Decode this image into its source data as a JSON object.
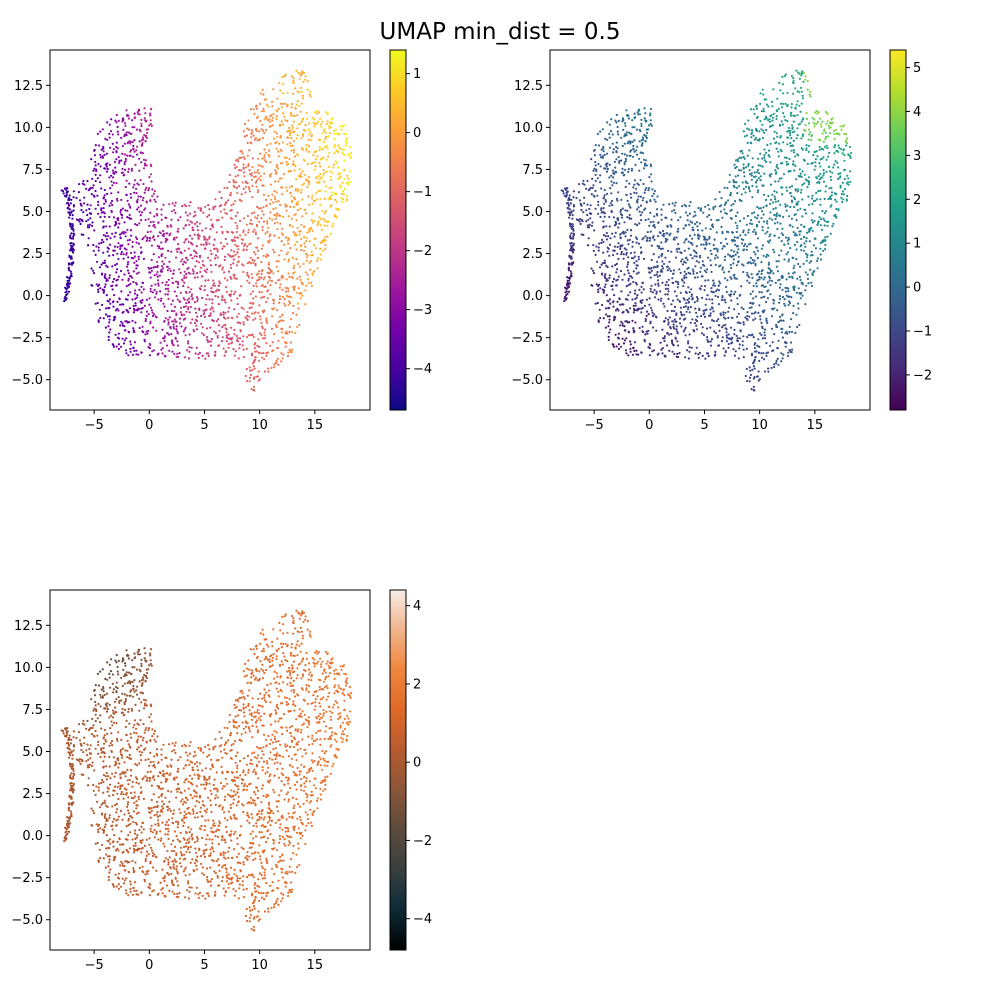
{
  "figure": {
    "suptitle": "UMAP min_dist = 0.5"
  },
  "chart_data": [
    {
      "type": "scatter",
      "panel": "top-left",
      "title": "",
      "xlabel": "",
      "ylabel": "",
      "xlim": [
        -9,
        20
      ],
      "ylim": [
        -6.8,
        14.6
      ],
      "xticks": [
        -5,
        0,
        5,
        10,
        15
      ],
      "yticks": [
        -5.0,
        -2.5,
        0.0,
        2.5,
        5.0,
        7.5,
        10.0,
        12.5
      ],
      "xtick_labels": [
        "−5",
        "0",
        "5",
        "10",
        "15"
      ],
      "ytick_labels": [
        "−5.0",
        "−2.5",
        "0.0",
        "2.5",
        "5.0",
        "7.5",
        "10.0",
        "12.5"
      ],
      "grid": false,
      "colormap": "plasma",
      "color_range": [
        -4.7,
        1.4
      ],
      "colorbar_ticks": [
        -4,
        -3,
        -2,
        -1,
        0,
        1
      ],
      "colorbar_tick_labels": [
        "−4",
        "−3",
        "−2",
        "−1",
        "0",
        "1"
      ],
      "color_trend": "increases toward upper right (yellow), lowest on left arm (purple)"
    },
    {
      "type": "scatter",
      "panel": "top-right",
      "title": "",
      "xlabel": "",
      "ylabel": "",
      "xlim": [
        -9,
        20
      ],
      "ylim": [
        -6.8,
        14.6
      ],
      "xticks": [
        -5,
        0,
        5,
        10,
        15
      ],
      "yticks": [
        -5.0,
        -2.5,
        0.0,
        2.5,
        5.0,
        7.5,
        10.0,
        12.5
      ],
      "xtick_labels": [
        "−5",
        "0",
        "5",
        "10",
        "15"
      ],
      "ytick_labels": [
        "−5.0",
        "−2.5",
        "0.0",
        "2.5",
        "5.0",
        "7.5",
        "10.0",
        "12.5"
      ],
      "grid": false,
      "colormap": "viridis",
      "color_range": [
        -2.8,
        5.4
      ],
      "colorbar_ticks": [
        -2,
        -1,
        0,
        1,
        2,
        3,
        4,
        5
      ],
      "colorbar_tick_labels": [
        "−2",
        "−1",
        "0",
        "1",
        "2",
        "3",
        "4",
        "5"
      ],
      "color_trend": "highest at top right lobe (green-yellow), lowest at bottom left (dark purple)"
    },
    {
      "type": "scatter",
      "panel": "bottom-left",
      "title": "",
      "xlabel": "",
      "ylabel": "",
      "xlim": [
        -9,
        20
      ],
      "ylim": [
        -6.8,
        14.6
      ],
      "xticks": [
        -5,
        0,
        5,
        10,
        15
      ],
      "yticks": [
        -5.0,
        -2.5,
        0.0,
        2.5,
        5.0,
        7.5,
        10.0,
        12.5
      ],
      "xtick_labels": [
        "−5",
        "0",
        "5",
        "10",
        "15"
      ],
      "ytick_labels": [
        "−5.0",
        "−2.5",
        "0.0",
        "2.5",
        "5.0",
        "7.5",
        "10.0",
        "12.5"
      ],
      "grid": false,
      "colormap": "oranges-dark",
      "color_range": [
        -4.8,
        4.4
      ],
      "colorbar_ticks": [
        -4,
        -2,
        0,
        2,
        4
      ],
      "colorbar_tick_labels": [
        "−4",
        "−2",
        "0",
        "2",
        "4"
      ],
      "color_trend": "darkest at top of left arm, orange on right side"
    }
  ]
}
